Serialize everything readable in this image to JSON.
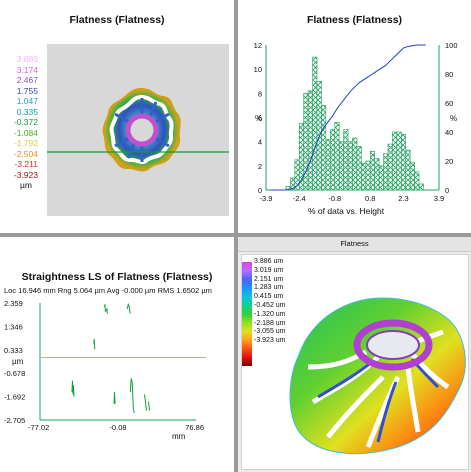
{
  "panel1": {
    "title": "Flatness (Flatness)",
    "legend": [
      {
        "value": "3.886",
        "color": "#f4b6f4"
      },
      {
        "value": "3.174",
        "color": "#e060e0"
      },
      {
        "value": "2.467",
        "color": "#8050d0"
      },
      {
        "value": "1.755",
        "color": "#3040c0"
      },
      {
        "value": "1.047",
        "color": "#20a0d0"
      },
      {
        "value": "0.335",
        "color": "#10a0a0"
      },
      {
        "value": "-0.372",
        "color": "#10a040"
      },
      {
        "value": "-1.084",
        "color": "#50b020"
      },
      {
        "value": "-1.792",
        "color": "#d0d040"
      },
      {
        "value": "-2.504",
        "color": "#e09020"
      },
      {
        "value": "-3.211",
        "color": "#d03020"
      },
      {
        "value": "-3.923",
        "color": "#901010"
      }
    ],
    "unit": "µm"
  },
  "panel2": {
    "title": "Flatness (Flatness)",
    "xlabel": "% of data vs. Height",
    "left_axis_label": "%",
    "right_axis_label": "%"
  },
  "panel3": {
    "title": "Straightness LS of Flatness (Flatness)",
    "stats": "Loc 16.946 mm  Rng 5.064 µm Avg -0.000 µm RMS 1.6502 µm",
    "unit_label": "µm",
    "xlabel": "mm"
  },
  "panel4": {
    "title": "Flatness",
    "colorbar": [
      "3.886 um",
      "3.019 um",
      "2.151 um",
      "1.283 um",
      "0.415 um",
      "-0.452 um",
      "-1.320 um",
      "-2.188 um",
      "-3.055 um",
      "-3.923 um"
    ]
  },
  "chart_data": [
    {
      "type": "bar",
      "title": "Flatness (Flatness)",
      "xlabel": "% of data vs. Height",
      "ylabel": "%",
      "x": [
        -3.7,
        -3.5,
        -3.3,
        -3.1,
        -2.9,
        -2.7,
        -2.5,
        -2.3,
        -2.1,
        -1.9,
        -1.7,
        -1.5,
        -1.3,
        -1.1,
        -0.9,
        -0.7,
        -0.5,
        -0.3,
        -0.1,
        0.1,
        0.3,
        0.5,
        0.7,
        0.9,
        1.1,
        1.3,
        1.5,
        1.7,
        1.9,
        2.1,
        2.3,
        2.5,
        2.7,
        2.9,
        3.1,
        3.3
      ],
      "values": [
        0,
        0,
        0,
        0,
        0.3,
        1,
        2.5,
        5.5,
        8,
        8.2,
        11,
        9,
        7,
        4.2,
        5,
        5.6,
        4,
        5,
        4,
        4.3,
        3.6,
        2.2,
        2.4,
        3.2,
        2.6,
        2,
        3,
        3.8,
        4.8,
        4.8,
        4.6,
        3.3,
        2.3,
        1.5,
        0.5,
        0
      ],
      "cumulative": [
        0,
        0,
        0,
        0,
        0.2,
        1,
        3,
        7,
        13,
        20,
        29,
        37,
        43,
        47,
        51,
        56,
        60,
        64,
        68,
        71,
        74,
        76,
        78,
        80,
        82,
        84,
        86,
        89,
        92,
        95,
        98,
        99,
        99.5,
        100,
        100,
        100
      ],
      "ylim": [
        0,
        12
      ],
      "y2lim": [
        0,
        100
      ],
      "xlim": [
        -3.9,
        3.9
      ],
      "x_ticks": [
        "-3.9",
        "-2.4",
        "-0.8",
        "0.8",
        "2.3",
        "3.9"
      ],
      "y_ticks": [
        "0",
        "2",
        "4",
        "6",
        "8",
        "10",
        "12"
      ],
      "y2_ticks": [
        "0",
        "20",
        "40",
        "60",
        "80",
        "100"
      ]
    },
    {
      "type": "line",
      "title": "Straightness LS of Flatness (Flatness)",
      "xlabel": "mm",
      "ylabel": "µm",
      "xlim": [
        -77.02,
        76.86
      ],
      "ylim": [
        -2.705,
        2.359
      ],
      "x_ticks": [
        "-77.02",
        "-0.08",
        "76.86"
      ],
      "y_ticks": [
        "2.359",
        "1.346",
        "0.333",
        "-0.678",
        "-1.692",
        "-2.705"
      ],
      "segments": [
        [
          [
            -45.5,
            -1.5
          ],
          [
            -45,
            -1.0
          ],
          [
            -44.4,
            -1.6
          ],
          [
            -44,
            -1.2
          ],
          [
            -43.5,
            -1.7
          ]
        ],
        [
          [
            -24,
            0.6
          ],
          [
            -23.5,
            0.8
          ],
          [
            -23,
            0.35
          ]
        ],
        [
          [
            -13.5,
            2.2
          ],
          [
            -13,
            2.3
          ],
          [
            -12.5,
            2.0
          ],
          [
            -11,
            2.1
          ],
          [
            -10.5,
            1.9
          ]
        ],
        [
          [
            -4,
            -2.0
          ],
          [
            -3.5,
            -1.5
          ],
          [
            -3,
            -2.0
          ]
        ],
        [
          [
            9,
            2.1
          ],
          [
            10,
            2.3
          ],
          [
            11,
            2.2
          ],
          [
            12,
            1.9
          ]
        ],
        [
          [
            12,
            -1.5
          ],
          [
            13,
            -0.9
          ],
          [
            14,
            -1.1
          ],
          [
            15,
            -2.2
          ],
          [
            16,
            -2.4
          ]
        ],
        [
          [
            26,
            -1.6
          ],
          [
            27,
            -1.9
          ],
          [
            28,
            -2.3
          ]
        ],
        [
          [
            30,
            -1.9
          ],
          [
            31,
            -2.3
          ]
        ]
      ]
    }
  ]
}
